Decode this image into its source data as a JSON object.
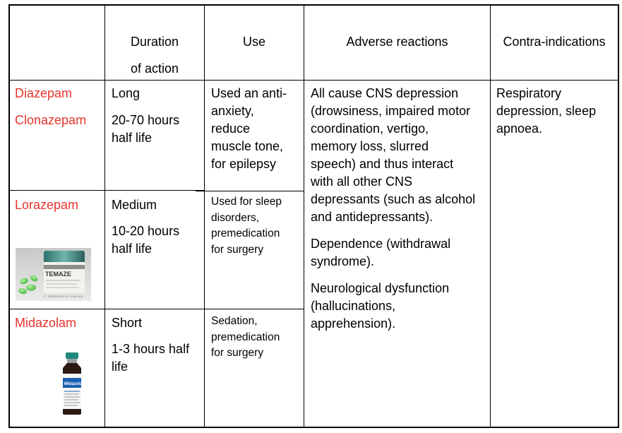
{
  "headers": {
    "duration": "Duration\nof action",
    "use": "Use",
    "adverse": "Adverse reactions",
    "contra": "Contra-indications"
  },
  "rows": [
    {
      "drugs": [
        "Diazepam",
        "Clonazepam"
      ],
      "duration_class": "Long",
      "half_life": "20-70 hours\nhalf life",
      "use": "Used an anti-\nanxiety,\nreduce\nmuscle tone,\nfor epilepsy"
    },
    {
      "drugs": [
        "Lorazepam"
      ],
      "duration_class": "Medium",
      "half_life": "10-20 hours\nhalf life",
      "use": "Used for sleep\ndisorders,\npremedication\nfor surgery",
      "image": {
        "icon": "temazepam-bottle-photo",
        "caption": "C. Widdowson & Crewe.org"
      }
    },
    {
      "drugs": [
        "Midazolam"
      ],
      "duration_class": "Short",
      "half_life": "1-3 hours half\nlife",
      "use": "Sedation,\npremedication\nfor surgery",
      "image": {
        "icon": "midazolam-vial-photo"
      }
    }
  ],
  "adverse_reactions": [
    "All cause CNS depression\n(drowsiness, impaired motor\ncoordination, vertigo,\nmemory loss, slurred\nspeech) and thus interact\nwith all other CNS\ndepressants (such as alcohol\nand antidepressants).",
    "Dependence (withdrawal\nsyndrome).",
    "Neurological dysfunction\n(hallucinations,\napprehension)."
  ],
  "contra_indications": "Respiratory\ndepression, sleep\napnoea.",
  "colors": {
    "drug_name": "#e5352d",
    "border": "#000000"
  }
}
